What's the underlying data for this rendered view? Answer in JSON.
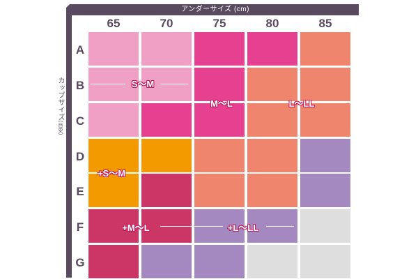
{
  "header": {
    "title": "アンダーサイズ (cm)",
    "side_title": "カップサイズ",
    "side_note": "(目安)"
  },
  "columns": [
    "65",
    "70",
    "75",
    "80",
    "85"
  ],
  "rows": [
    "A",
    "B",
    "C",
    "D",
    "E",
    "F",
    "G"
  ],
  "groups": {
    "s_m": "S～M",
    "m_l": "M～L",
    "l_ll": "L～LL",
    "plus_s_m": "+S～M",
    "plus_m_l": "+M～L",
    "plus_l_ll": "+L～LL"
  },
  "colors": {
    "frame": "#5a4a60",
    "pink_light": "#efa0c4",
    "pink_hot": "#e64191",
    "salmon": "#ee856c",
    "lavender": "#a489c0",
    "orange": "#f29a00",
    "crimson": "#cc3666",
    "gray": "#dedede"
  }
}
